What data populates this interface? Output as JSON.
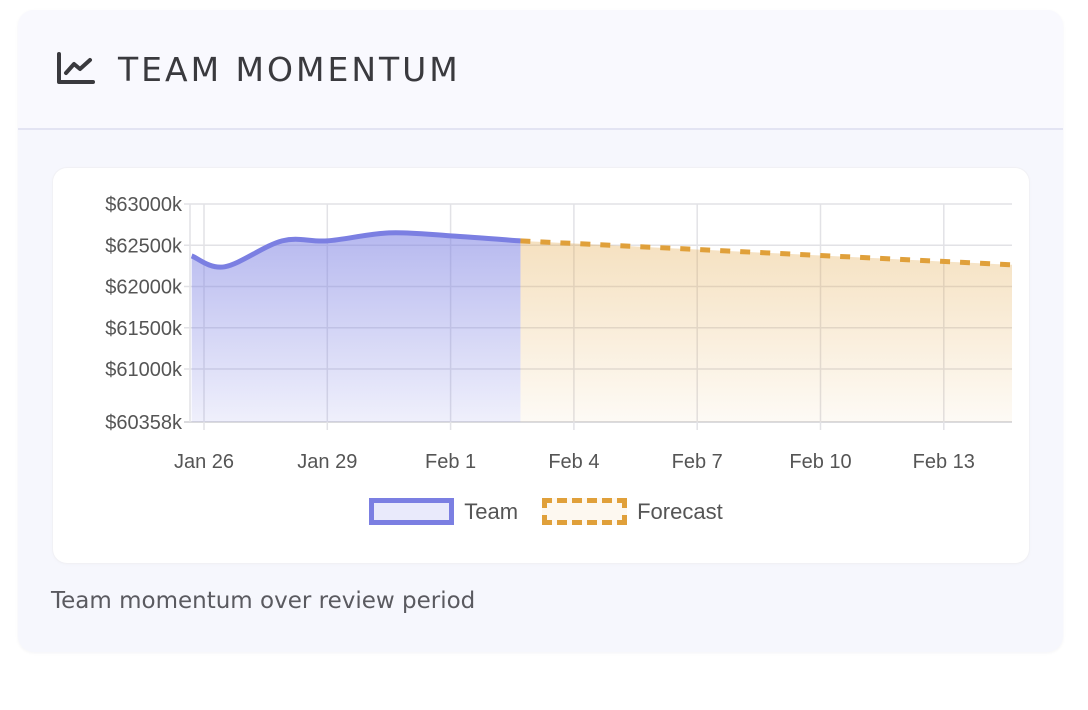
{
  "header": {
    "title": "TEAM MOMENTUM",
    "icon": "line-chart-icon"
  },
  "caption": "Team momentum over review period",
  "legend": {
    "team_label": "Team",
    "forecast_label": "Forecast"
  },
  "colors": {
    "team": "#7b7fe2",
    "forecast": "#e0a03a",
    "grid": "#e2e2e6",
    "axis_text": "#555555"
  },
  "chart_data": {
    "type": "line",
    "title": "Team Momentum",
    "xlabel": "",
    "ylabel": "",
    "y_tick_labels": [
      "$63000k",
      "$62500k",
      "$62000k",
      "$61500k",
      "$61000k",
      "$60358k"
    ],
    "y_ticks": [
      63000,
      62500,
      62000,
      61500,
      61000,
      60358
    ],
    "ylim": [
      60358,
      63000
    ],
    "x_tick_labels": [
      "Jan 26",
      "Jan 29",
      "Feb 1",
      "Feb 4",
      "Feb 7",
      "Feb 10",
      "Feb 13"
    ],
    "grid": true,
    "legend_position": "bottom",
    "area_fill": true,
    "series": [
      {
        "name": "Team",
        "style": "solid",
        "x": [
          "Jan 25.7",
          "Jan 26.5",
          "Jan 27.9",
          "Jan 29",
          "Jan 30.5",
          "Feb 1",
          "Feb 2.7"
        ],
        "values": [
          62372,
          62239,
          62553,
          62553,
          62650,
          62614,
          62553
        ]
      },
      {
        "name": "Forecast",
        "style": "dashed",
        "x": [
          "Feb 2.7",
          "Feb 14.7"
        ],
        "values": [
          62553,
          62263
        ]
      }
    ]
  }
}
